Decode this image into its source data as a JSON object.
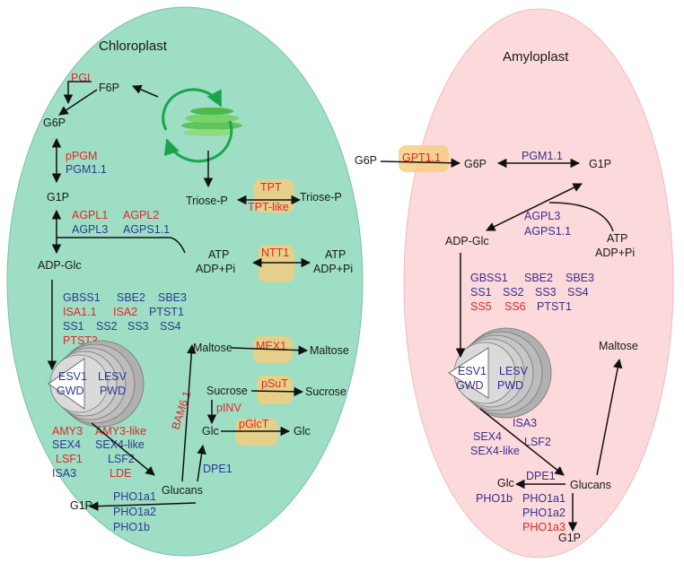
{
  "chloroplast": {
    "title": "Chloroplast",
    "metabolites": {
      "f6p": "F6P",
      "g6p": "G6P",
      "g1p": "G1P",
      "adp_glc": "ADP-Glc",
      "triose_p": "Triose-P",
      "atp": "ATP",
      "adp_pi": "ADP+Pi",
      "maltose": "Maltose",
      "sucrose": "Sucrose",
      "glc": "Glc",
      "glucans": "Glucans",
      "g1p_bottom": "G1P"
    },
    "enzymes": {
      "pgi": "PGI",
      "ppgm": "pPGM",
      "pgm11": "PGM1.1",
      "agpl1": "AGPL1",
      "agpl2": "AGPL2",
      "agpl3": "AGPL3",
      "agps11": "AGPS1.1",
      "gbss1": "GBSS1",
      "sbe2": "SBE2",
      "sbe3": "SBE3",
      "isa11": "ISA1.1",
      "isa2": "ISA2",
      "pts1": "PTST1",
      "ss1": "SS1",
      "ss2": "SS2",
      "ss3": "SS3",
      "ss4": "SS4",
      "ptst3": "PTST3",
      "esv1": "ESV1",
      "lesv": "LESV",
      "gwd": "GWD",
      "pwd": "PWD",
      "amy3": "AMY3",
      "amy3_like": "AMY3-like",
      "sex4": "SEX4",
      "sex4_like": "SEX4-like",
      "lsf1": "LSF1",
      "lsf2": "LSF2",
      "isa3": "ISA3",
      "lde": "LDE",
      "bam61": "BAM6.1",
      "pinv": "pINV",
      "dpe1": "DPE1",
      "pho1a1": "PHO1a1",
      "pho1a2": "PHO1a2",
      "pho1b": "PHO1b"
    }
  },
  "transporters": {
    "tpt": "TPT",
    "tpt_like": "TPT-like",
    "ntt1": "NTT1",
    "mex1": "MEX1",
    "psut": "pSuT",
    "pglct": "pGlcT",
    "gpt11": "GPT1.1"
  },
  "outside": {
    "triose_p": "Triose-P",
    "atp": "ATP",
    "adp_pi": "ADP+Pi",
    "maltose": "Maltose",
    "sucrose": "Sucrose",
    "glc": "Glc",
    "g6p": "G6P"
  },
  "amyloplast": {
    "title": "Amyloplast",
    "metabolites": {
      "g6p": "G6P",
      "g1p": "G1P",
      "adp_glc": "ADP-Glc",
      "atp": "ATP",
      "adp_pi": "ADP+Pi",
      "maltose": "Maltose",
      "glc": "Glc",
      "glucans": "Glucans",
      "g1p_bottom": "G1P"
    },
    "enzymes": {
      "pgm11": "PGM1.1",
      "agpl3": "AGPL3",
      "agps11": "AGPS1.1",
      "gbss1": "GBSS1",
      "sbe2": "SBE2",
      "sbe3": "SBE3",
      "ss1": "SS1",
      "ss2": "SS2",
      "ss3": "SS3",
      "ss4": "SS4",
      "ss5": "SS5",
      "ss6": "SS6",
      "ptst1": "PTST1",
      "esv1": "ESV1",
      "lesv": "LESV",
      "gwd": "GWD",
      "pwd": "PWD",
      "isa3": "ISA3",
      "sex4": "SEX4",
      "lsf2": "LSF2",
      "sex4_like": "SEX4-like",
      "dpe1": "DPE1",
      "pho1b": "PHO1b",
      "pho1a1": "PHO1a1",
      "pho1a2": "PHO1a2",
      "pho1a3": "PHO1a3"
    }
  },
  "colors": {
    "chloroplast_fill": "#9ddec4",
    "amyloplast_fill": "#fcd9da",
    "transporter_box": "#f6cc7c",
    "enzyme_red": "#e32727",
    "enzyme_blue": "#2b3a92",
    "cycle_green": "#1aa54b",
    "starch_grey": "#bdbdbd"
  }
}
